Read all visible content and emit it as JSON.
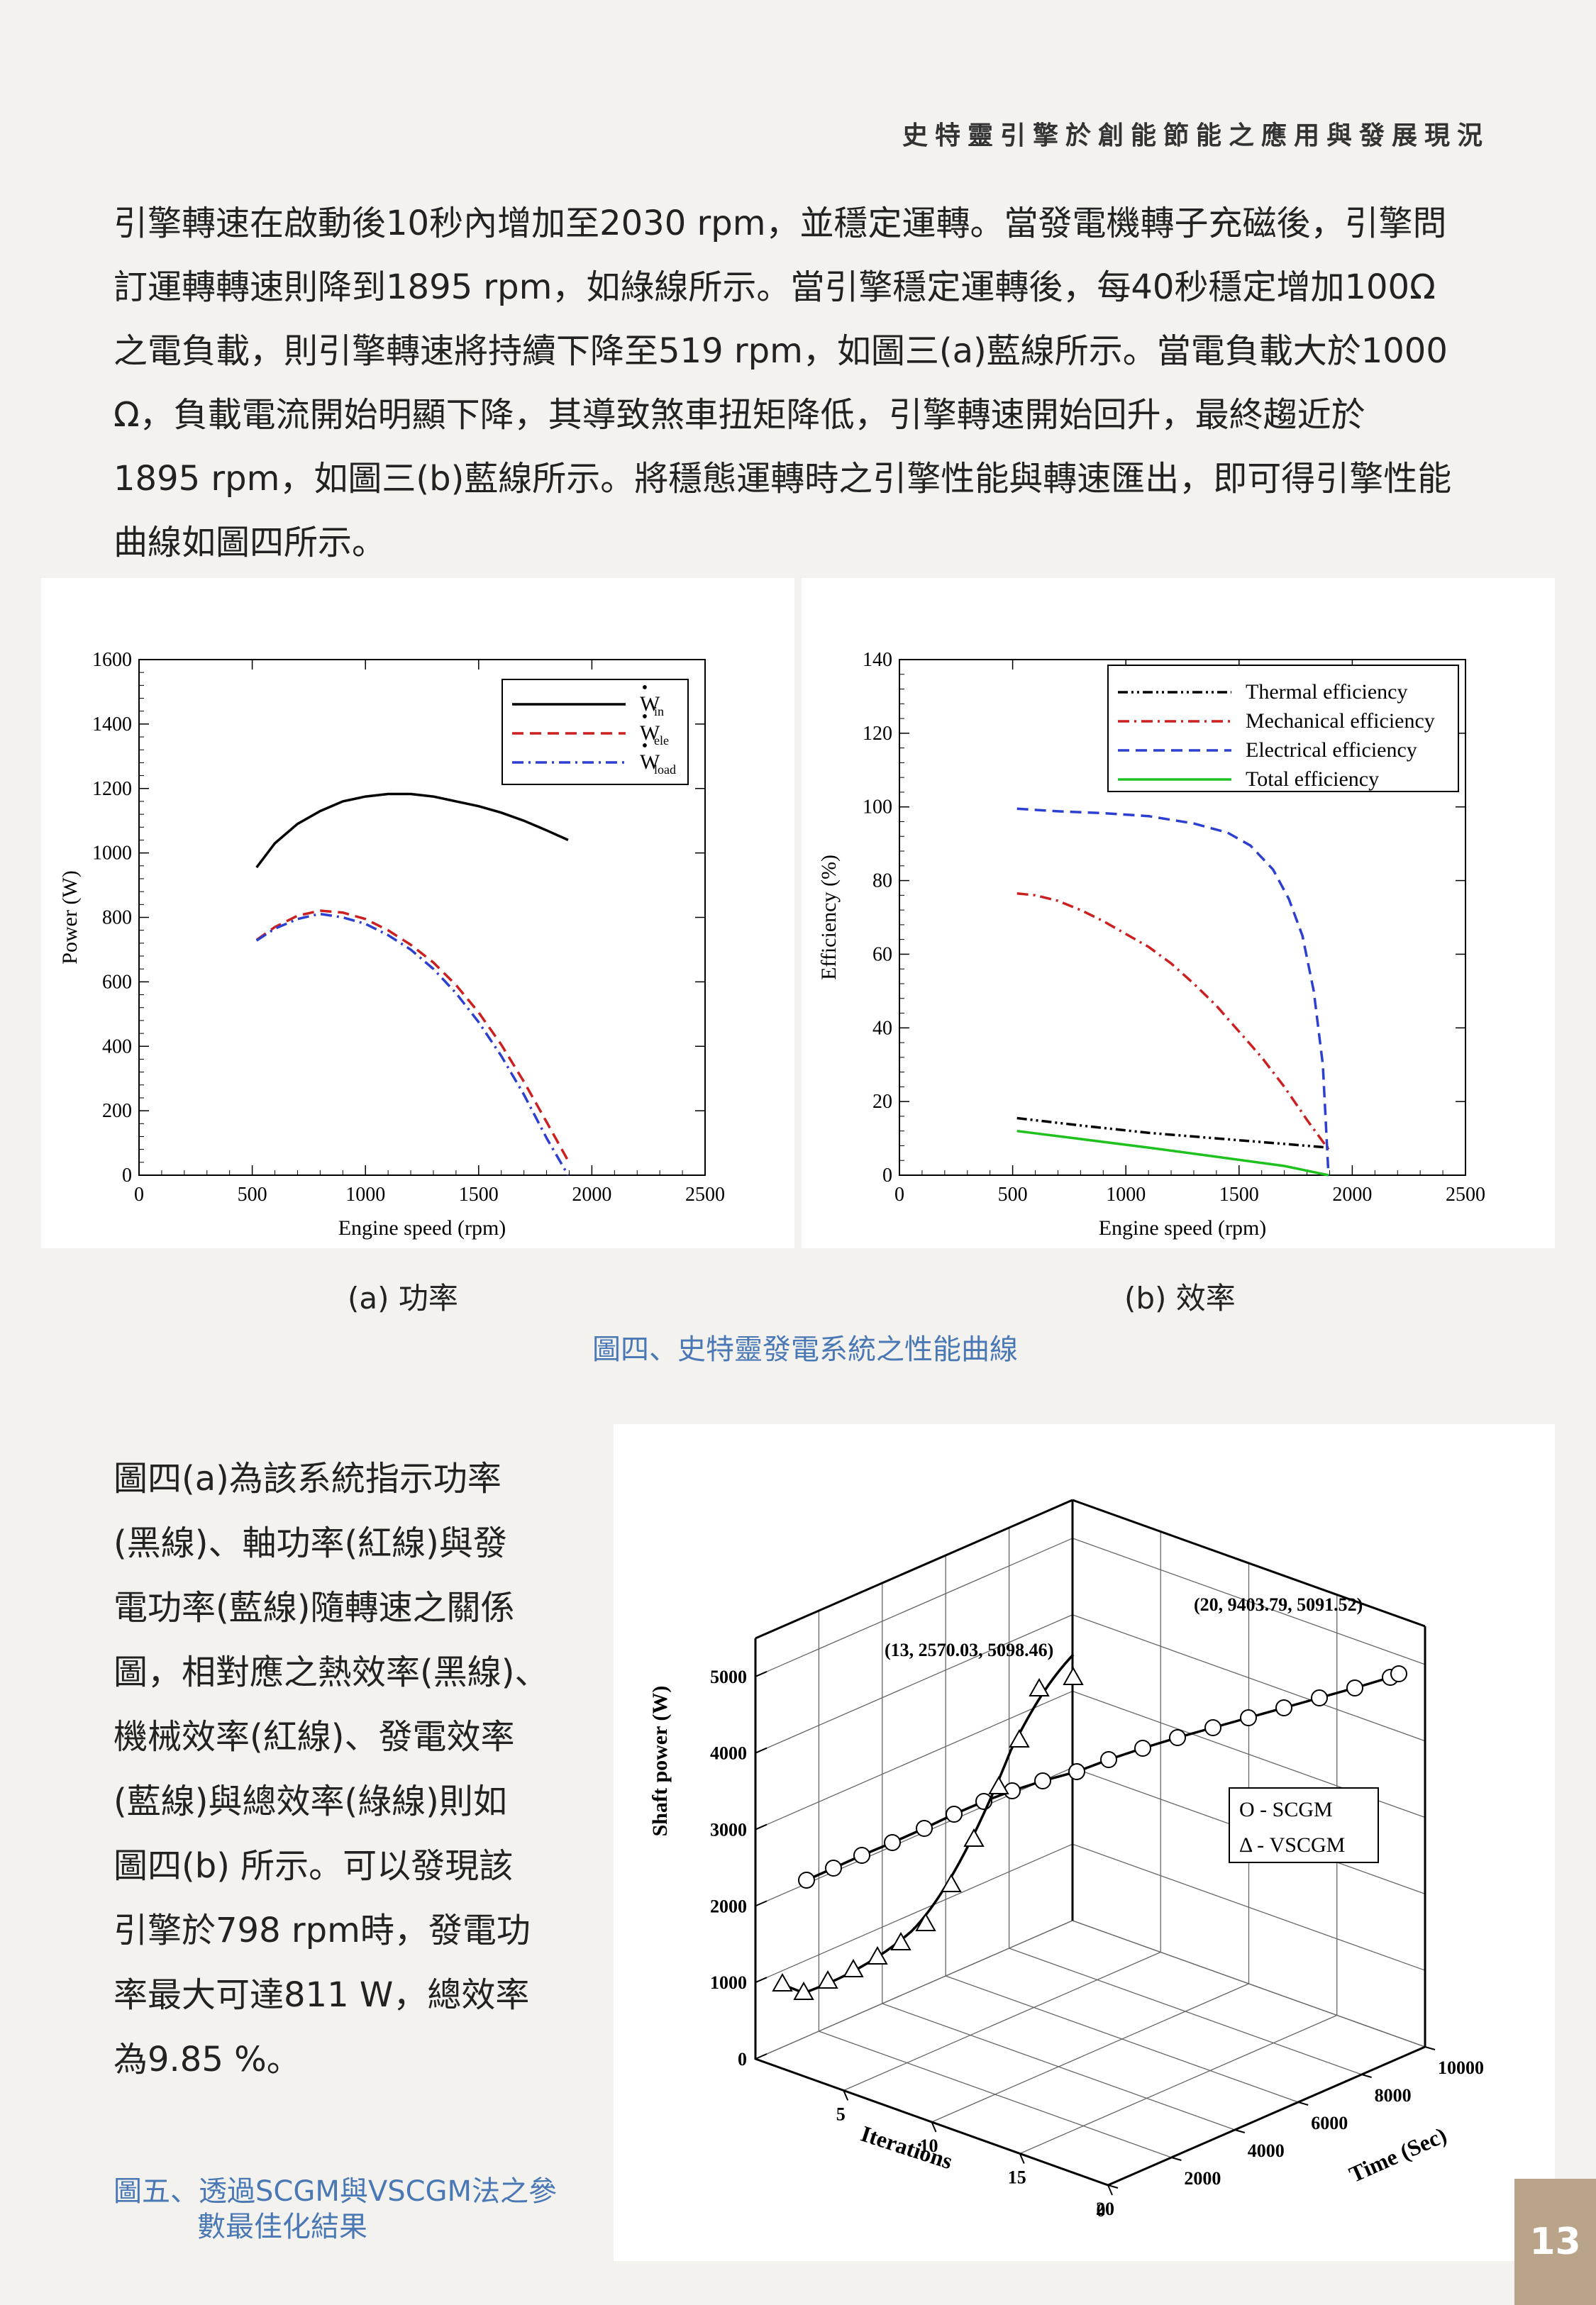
{
  "header": {
    "title": "史特靈引擎於創能節能之應用與發展現況"
  },
  "intro_lines": [
    "引擎轉速在啟動後10秒內增加至2030 rpm，並穩定運轉。當發電機轉子充磁後，引擎問",
    "訂運轉轉速則降到1895 rpm，如綠線所示。當引擎穩定運轉後，每40秒穩定增加100Ω",
    "之電負載，則引擎轉速將持續下降至519 rpm，如圖三(a)藍線所示。當電負載大於1000",
    "Ω，負載電流開始明顯下降，其導致煞車扭矩降低，引擎轉速開始回升，最終趨近於",
    "1895 rpm，如圖三(b)藍線所示。將穩態運轉時之引擎性能與轉速匯出，即可得引擎性能",
    "曲線如圖四所示。"
  ],
  "figure4": {
    "caption_a": "(a) 功率",
    "caption_b": "(b) 效率",
    "title": "圖四、史特靈發電系統之性能曲線"
  },
  "body_lines": [
    "圖四(a)為該系統指示功率",
    "(黑線)、軸功率(紅線)與發",
    "電功率(藍線)隨轉速之關係",
    "圖，相對應之熱效率(黑線)、",
    "機械效率(紅線)、發電效率",
    "(藍線)與總效率(綠線)則如",
    "圖四(b) 所示。可以發現該",
    "引擎於798 rpm時，發電功",
    "率最大可達811 W，總效率",
    "為9.85 %。"
  ],
  "figure5": {
    "caption_line1": "圖五、透過SCGM與VSCGM法之參",
    "caption_line2": "數最佳化結果"
  },
  "page_number": "13",
  "chart_data": [
    {
      "type": "line",
      "xlabel": "Engine speed (rpm)",
      "ylabel": "Power (W)",
      "xlim": [
        0,
        2500
      ],
      "ylim": [
        0,
        1600
      ],
      "xticks": [
        "0",
        "500",
        "1000",
        "1500",
        "2000",
        "2500"
      ],
      "yticks": [
        "0",
        "200",
        "400",
        "600",
        "800",
        "1000",
        "1200",
        "1400",
        "1600"
      ],
      "legend_position": "top-right",
      "series": [
        {
          "name": "W",
          "sub": "in",
          "color": "#000000",
          "dash": "solid",
          "x": [
            519,
            600,
            700,
            800,
            900,
            1000,
            1100,
            1200,
            1300,
            1400,
            1500,
            1600,
            1700,
            1800,
            1895
          ],
          "y": [
            955,
            1030,
            1090,
            1130,
            1160,
            1175,
            1183,
            1183,
            1175,
            1160,
            1145,
            1125,
            1100,
            1070,
            1040
          ]
        },
        {
          "name": "W",
          "sub": "ele",
          "color": "#cc1f1f",
          "dash": "dash",
          "x": [
            519,
            600,
            700,
            800,
            900,
            1000,
            1100,
            1200,
            1300,
            1400,
            1500,
            1600,
            1700,
            1800,
            1895
          ],
          "y": [
            730,
            770,
            805,
            821,
            815,
            795,
            760,
            715,
            660,
            590,
            505,
            405,
            290,
            165,
            45
          ]
        },
        {
          "name": "W",
          "sub": "load",
          "color": "#2c3fd0",
          "dash": "dashdot",
          "x": [
            519,
            600,
            700,
            798,
            900,
            1000,
            1100,
            1200,
            1300,
            1400,
            1500,
            1600,
            1700,
            1800,
            1895
          ],
          "y": [
            728,
            765,
            795,
            811,
            800,
            780,
            745,
            700,
            640,
            565,
            475,
            370,
            250,
            115,
            0
          ]
        }
      ]
    },
    {
      "type": "line",
      "xlabel": "Engine speed (rpm)",
      "ylabel": "Efficiency (%)",
      "xlim": [
        0,
        2500
      ],
      "ylim": [
        0,
        140
      ],
      "xticks": [
        "0",
        "500",
        "1000",
        "1500",
        "2000",
        "2500"
      ],
      "yticks": [
        "0",
        "20",
        "40",
        "60",
        "80",
        "100",
        "120",
        "140"
      ],
      "legend_position": "top-right",
      "series": [
        {
          "name": "Thermal efficiency",
          "color": "#000000",
          "dash": "dashdotdot",
          "x": [
            519,
            800,
            1100,
            1400,
            1700,
            1895
          ],
          "y": [
            15.5,
            13.5,
            11.5,
            10,
            8.5,
            7.5
          ]
        },
        {
          "name": "Mechanical efficiency",
          "color": "#cc1f1f",
          "dash": "dashdot",
          "x": [
            519,
            600,
            700,
            800,
            900,
            1000,
            1100,
            1200,
            1300,
            1400,
            1500,
            1600,
            1700,
            1800,
            1895
          ],
          "y": [
            76.5,
            76,
            74.5,
            72,
            69,
            65.5,
            62,
            57.5,
            52,
            46,
            39,
            32,
            24,
            15,
            7
          ]
        },
        {
          "name": "Electrical efficiency",
          "color": "#2c3fd0",
          "dash": "dash",
          "x": [
            519,
            700,
            900,
            1100,
            1300,
            1450,
            1550,
            1650,
            1720,
            1780,
            1830,
            1870,
            1895
          ],
          "y": [
            99.5,
            98.8,
            98.3,
            97.5,
            95.5,
            93,
            89.5,
            83,
            75,
            65,
            50,
            30,
            0
          ]
        },
        {
          "name": "Total efficiency",
          "color": "#1ec11e",
          "dash": "solid",
          "x": [
            519,
            798,
            1100,
            1400,
            1700,
            1895
          ],
          "y": [
            12,
            9.85,
            7.5,
            5,
            2.5,
            0
          ]
        }
      ]
    },
    {
      "type": "scatter",
      "zlabel": "Shaft power (W)",
      "xlabel": "Iterations",
      "ylabel": "Time (Sec)",
      "zticks": [
        "0",
        "1000",
        "2000",
        "3000",
        "4000",
        "5000"
      ],
      "xticks": [
        "5",
        "10",
        "15",
        "20"
      ],
      "yticks": [
        "0",
        "2000",
        "4000",
        "6000",
        "8000",
        "10000"
      ],
      "legend": [
        "O -  SCGM",
        "Δ -  VSCGM"
      ],
      "annotations": [
        "(13, 2570.03, 5098.46)",
        "(20, 9403.79, 5091.52)"
      ],
      "series": [
        {
          "name": "SCGM",
          "marker": "circle",
          "iterations": [
            1,
            2,
            3,
            4,
            5,
            6,
            7,
            8,
            9,
            10,
            11,
            12,
            13,
            14,
            15,
            16,
            17,
            18,
            19,
            20
          ]
        },
        {
          "name": "VSCGM",
          "marker": "triangle",
          "iterations": [
            1,
            2,
            3,
            4,
            5,
            6,
            7,
            8,
            9,
            10,
            11,
            12,
            13
          ]
        }
      ]
    }
  ]
}
